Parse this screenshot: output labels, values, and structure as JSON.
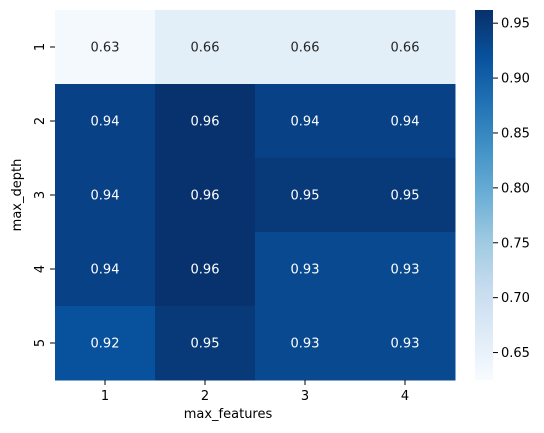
{
  "chart_data": {
    "type": "heatmap",
    "title": "",
    "xlabel": "max_features",
    "ylabel": "max_depth",
    "x_categories": [
      "1",
      "2",
      "3",
      "4"
    ],
    "y_categories": [
      "1",
      "2",
      "3",
      "4",
      "5"
    ],
    "values": [
      [
        0.63,
        0.66,
        0.66,
        0.66
      ],
      [
        0.94,
        0.96,
        0.94,
        0.94
      ],
      [
        0.94,
        0.96,
        0.95,
        0.95
      ],
      [
        0.94,
        0.96,
        0.93,
        0.93
      ],
      [
        0.92,
        0.95,
        0.93,
        0.93
      ]
    ],
    "annotations": [
      [
        "0.63",
        "0.66",
        "0.66",
        "0.66"
      ],
      [
        "0.94",
        "0.96",
        "0.94",
        "0.94"
      ],
      [
        "0.94",
        "0.96",
        "0.95",
        "0.95"
      ],
      [
        "0.94",
        "0.96",
        "0.93",
        "0.93"
      ],
      [
        "0.92",
        "0.95",
        "0.93",
        "0.93"
      ]
    ],
    "colormap": "Blues",
    "colorbar": {
      "range": [
        0.625,
        0.962
      ],
      "ticks": [
        0.65,
        0.7,
        0.75,
        0.8,
        0.85,
        0.9,
        0.95
      ],
      "tick_labels": [
        "0.65",
        "0.70",
        "0.75",
        "0.80",
        "0.85",
        "0.90",
        "0.95"
      ]
    },
    "grid": false
  }
}
